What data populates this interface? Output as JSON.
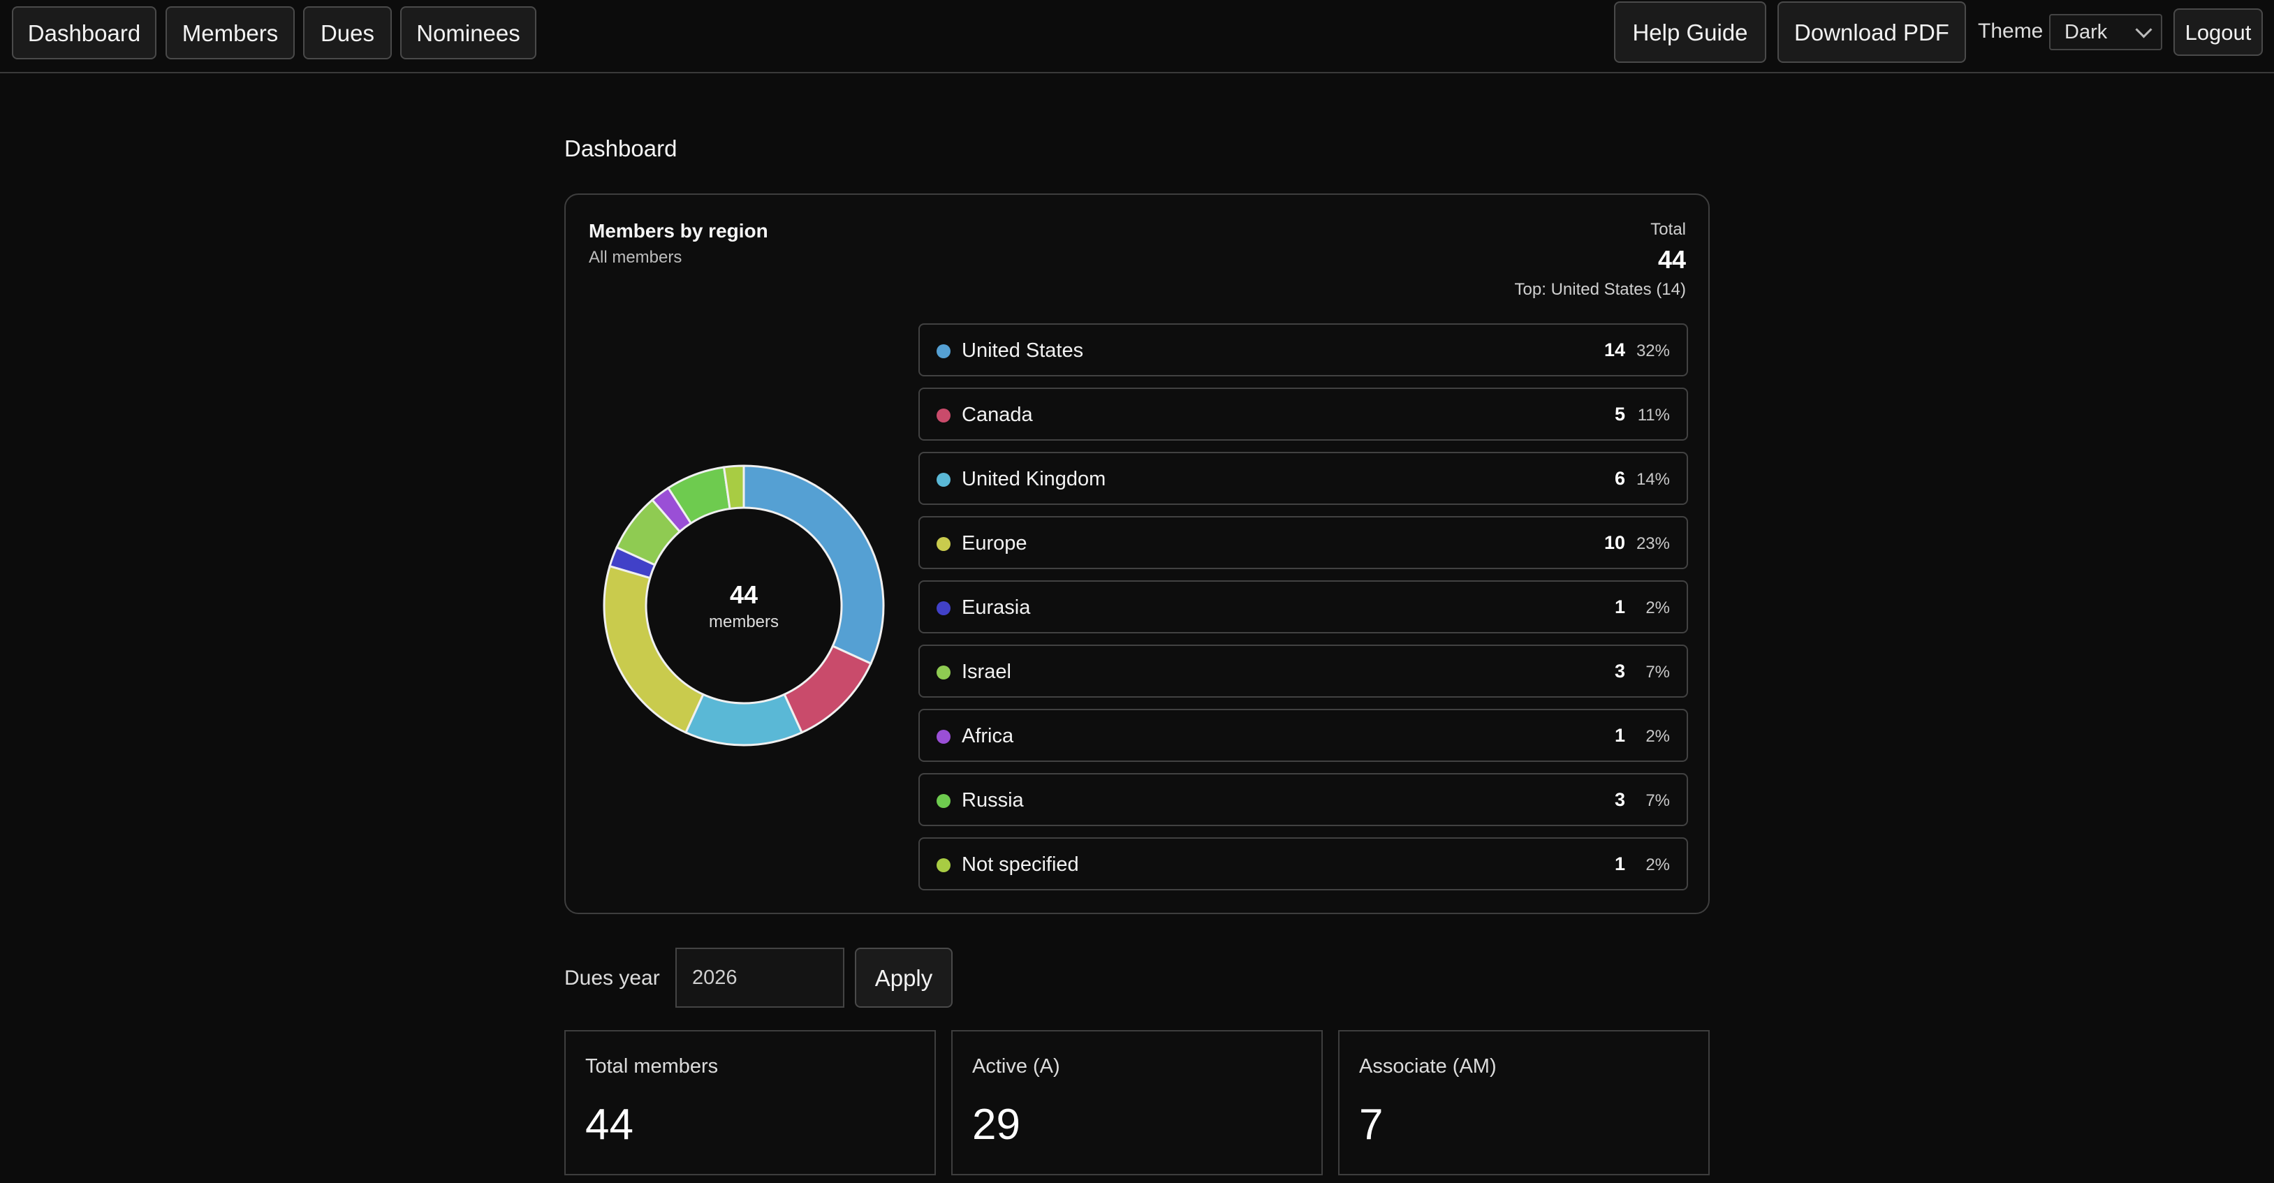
{
  "nav": {
    "tabs": [
      {
        "label": "Dashboard"
      },
      {
        "label": "Members"
      },
      {
        "label": "Dues"
      },
      {
        "label": "Nominees"
      }
    ],
    "help_label": "Help Guide",
    "download_label": "Download PDF",
    "theme_label": "Theme",
    "theme_value": "Dark",
    "logout_label": "Logout"
  },
  "page": {
    "title": "Dashboard"
  },
  "region_card": {
    "title": "Members by region",
    "subtitle": "All members",
    "total_label": "Total",
    "total_value": "44",
    "top_note": "Top: United States (14)",
    "center_value": "44",
    "center_label": "members"
  },
  "chart_data": {
    "type": "pie",
    "title": "Members by region",
    "subtitle": "All members",
    "total": 44,
    "categories": [
      "United States",
      "Canada",
      "United Kingdom",
      "Europe",
      "Eurasia",
      "Israel",
      "Africa",
      "Russia",
      "Not specified"
    ],
    "values": [
      14,
      5,
      6,
      10,
      1,
      3,
      1,
      3,
      1
    ],
    "percents": [
      "32%",
      "11%",
      "14%",
      "23%",
      "2%",
      "7%",
      "2%",
      "7%",
      "2%"
    ],
    "colors": [
      "#55a0d3",
      "#c94b6b",
      "#5ab8d6",
      "#c9cb4d",
      "#4141c8",
      "#8fcb52",
      "#9a4fd6",
      "#6ecb4f",
      "#a8cc43"
    ],
    "legend_placement": "right",
    "donut": true
  },
  "dues": {
    "label": "Dues year",
    "year": "2026",
    "apply_label": "Apply"
  },
  "stats": [
    {
      "label": "Total members",
      "value": "44"
    },
    {
      "label": "Active (A)",
      "value": "29"
    },
    {
      "label": "Associate (AM)",
      "value": "7"
    }
  ]
}
